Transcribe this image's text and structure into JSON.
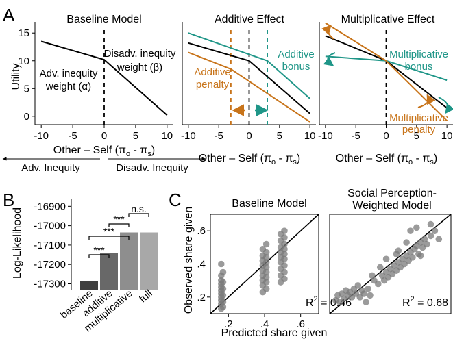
{
  "panel_letters": {
    "A": "A",
    "B": "B",
    "C": "C"
  },
  "colors": {
    "orange": "#c8741a",
    "teal": "#1f9688",
    "black": "#000000",
    "scatter": "#7a7a7a"
  },
  "chart_data": [
    {
      "id": "A1",
      "type": "line",
      "title": "Baseline Model",
      "xlabel": "Other – Self (π",
      "xlabel_sub1": "o",
      "xlabel_mid": " - π",
      "xlabel_sub2": "s",
      "xlabel_end": ")",
      "ylabel": "Utility",
      "xlim": [
        -11,
        11
      ],
      "ylim": [
        -1.5,
        17
      ],
      "xticks": [
        -10,
        -5,
        0,
        5,
        10
      ],
      "yticks": [
        0,
        5,
        10,
        15
      ],
      "series": [
        {
          "x": [
            -10,
            0,
            10
          ],
          "y": [
            13.5,
            10.2,
            0.2
          ],
          "color": "black"
        }
      ],
      "vline": 0,
      "annotations": {
        "adv1": "Adv. inequity",
        "adv2": "weight (α)",
        "dis1": "Disadv. inequity",
        "dis2": "weight (β)"
      },
      "arrow_labels": {
        "left": "Adv. Inequity",
        "right": "Disadv. Inequity"
      }
    },
    {
      "id": "A2",
      "type": "line",
      "title": "Additive Effect",
      "xlabel": "Other – Self (π",
      "xlabel_sub1": "o",
      "xlabel_mid": " - π",
      "xlabel_sub2": "s",
      "xlabel_end": ")",
      "xlim": [
        -11,
        11
      ],
      "ylim": [
        -1.5,
        17
      ],
      "xticks": [
        -10,
        -5,
        0,
        5,
        10
      ],
      "series": [
        {
          "x": [
            -10,
            0,
            10
          ],
          "y": [
            13.2,
            10.0,
            0.5
          ],
          "color": "black"
        },
        {
          "x": [
            -10,
            3,
            10
          ],
          "y": [
            15.0,
            10.0,
            3.2
          ],
          "color": "teal"
        },
        {
          "x": [
            -10,
            -3,
            10
          ],
          "y": [
            11.5,
            8.5,
            -1.0
          ],
          "color": "orange"
        }
      ],
      "vlines": [
        {
          "x": -3,
          "color": "orange"
        },
        {
          "x": 0,
          "color": "black"
        },
        {
          "x": 3,
          "color": "teal"
        }
      ],
      "annotations": {
        "bonus1": "Additive",
        "bonus2": "bonus",
        "pen1": "Additive",
        "pen2": "penalty"
      }
    },
    {
      "id": "A3",
      "type": "line",
      "title": "Multiplicative Effect",
      "xlabel": "Other – Self (π",
      "xlabel_sub1": "o",
      "xlabel_mid": " - π",
      "xlabel_sub2": "s",
      "xlabel_end": ")",
      "xlim": [
        -11,
        11
      ],
      "ylim": [
        -1.5,
        17
      ],
      "xticks": [
        -10,
        -5,
        0,
        5,
        10
      ],
      "series": [
        {
          "x": [
            -10,
            0,
            10
          ],
          "y": [
            14.5,
            10.0,
            1.5
          ],
          "color": "black"
        },
        {
          "x": [
            -10,
            0,
            10
          ],
          "y": [
            10.8,
            10.0,
            6.5
          ],
          "color": "teal"
        },
        {
          "x": [
            -10,
            0,
            10
          ],
          "y": [
            16.8,
            10.0,
            -0.8
          ],
          "color": "orange"
        }
      ],
      "vline": 0,
      "annotations": {
        "bonus1": "Multiplicative",
        "bonus2": "bonus",
        "pen1": "Multiplicative",
        "pen2": "penalty"
      }
    },
    {
      "id": "B",
      "type": "bar",
      "ylabel": "Log-Likelihood",
      "categories": [
        "baseline",
        "additive",
        "multiplicative",
        "full"
      ],
      "values": [
        -17285,
        -17142,
        -17035,
        -17035
      ],
      "bar_colors": [
        "#404040",
        "#686868",
        "#8e8e8e",
        "#a8a8a8"
      ],
      "ylim": [
        -17330,
        -16860
      ],
      "yticks": [
        -16900,
        -17000,
        -17100,
        -17200,
        -17300
      ],
      "significance": [
        "***",
        "***",
        "***",
        "n.s."
      ]
    },
    {
      "id": "C1",
      "type": "scatter",
      "title": "Baseline Model",
      "xlabel": "Predicted share given",
      "ylabel": "Observed share given",
      "xlim": [
        0.1,
        0.7
      ],
      "ylim": [
        0.1,
        0.7
      ],
      "xticks": [
        ".2",
        ".4",
        ".6"
      ],
      "yticks": [
        ".2",
        ".4",
        ".6"
      ],
      "r2_label": "R",
      "r2_sup": "2",
      "r2_value": " = 0.46",
      "points": [
        [
          0.16,
          0.13
        ],
        [
          0.16,
          0.16
        ],
        [
          0.16,
          0.18
        ],
        [
          0.16,
          0.2
        ],
        [
          0.16,
          0.22
        ],
        [
          0.16,
          0.24
        ],
        [
          0.16,
          0.26
        ],
        [
          0.16,
          0.28
        ],
        [
          0.16,
          0.3
        ],
        [
          0.16,
          0.33
        ],
        [
          0.16,
          0.4
        ],
        [
          0.17,
          0.14
        ],
        [
          0.17,
          0.17
        ],
        [
          0.17,
          0.21
        ],
        [
          0.17,
          0.25
        ],
        [
          0.17,
          0.29
        ],
        [
          0.17,
          0.35
        ],
        [
          0.39,
          0.23
        ],
        [
          0.39,
          0.27
        ],
        [
          0.39,
          0.3
        ],
        [
          0.39,
          0.33
        ],
        [
          0.39,
          0.36
        ],
        [
          0.39,
          0.39
        ],
        [
          0.39,
          0.42
        ],
        [
          0.39,
          0.45
        ],
        [
          0.39,
          0.49
        ],
        [
          0.41,
          0.25
        ],
        [
          0.41,
          0.29
        ],
        [
          0.41,
          0.32
        ],
        [
          0.41,
          0.35
        ],
        [
          0.41,
          0.38
        ],
        [
          0.41,
          0.41
        ],
        [
          0.41,
          0.44
        ],
        [
          0.41,
          0.47
        ],
        [
          0.41,
          0.52
        ],
        [
          0.49,
          0.29
        ],
        [
          0.49,
          0.33
        ],
        [
          0.49,
          0.37
        ],
        [
          0.49,
          0.41
        ],
        [
          0.49,
          0.44
        ],
        [
          0.49,
          0.47
        ],
        [
          0.49,
          0.5
        ],
        [
          0.49,
          0.54
        ],
        [
          0.49,
          0.58
        ],
        [
          0.51,
          0.31
        ],
        [
          0.51,
          0.35
        ],
        [
          0.51,
          0.39
        ],
        [
          0.51,
          0.43
        ],
        [
          0.51,
          0.46
        ],
        [
          0.51,
          0.49
        ],
        [
          0.51,
          0.52
        ],
        [
          0.51,
          0.56
        ],
        [
          0.51,
          0.6
        ]
      ]
    },
    {
      "id": "C2",
      "type": "scatter",
      "title1": "Social Perception-",
      "title2": "Weighted Model",
      "xlim": [
        0.1,
        0.7
      ],
      "ylim": [
        0.1,
        0.7
      ],
      "r2_label": "R",
      "r2_sup": "2",
      "r2_value": " = 0.68",
      "points": [
        [
          0.13,
          0.18
        ],
        [
          0.14,
          0.21
        ],
        [
          0.15,
          0.17
        ],
        [
          0.16,
          0.22
        ],
        [
          0.17,
          0.19
        ],
        [
          0.18,
          0.24
        ],
        [
          0.19,
          0.21
        ],
        [
          0.2,
          0.23
        ],
        [
          0.21,
          0.2
        ],
        [
          0.22,
          0.25
        ],
        [
          0.23,
          0.22
        ],
        [
          0.24,
          0.27
        ],
        [
          0.25,
          0.2
        ],
        [
          0.26,
          0.24
        ],
        [
          0.27,
          0.22
        ],
        [
          0.28,
          0.17
        ],
        [
          0.29,
          0.25
        ],
        [
          0.3,
          0.21
        ],
        [
          0.32,
          0.3
        ],
        [
          0.34,
          0.28
        ],
        [
          0.36,
          0.33
        ],
        [
          0.37,
          0.3
        ],
        [
          0.38,
          0.35
        ],
        [
          0.39,
          0.32
        ],
        [
          0.4,
          0.37
        ],
        [
          0.41,
          0.34
        ],
        [
          0.42,
          0.39
        ],
        [
          0.43,
          0.36
        ],
        [
          0.44,
          0.41
        ],
        [
          0.45,
          0.38
        ],
        [
          0.46,
          0.43
        ],
        [
          0.47,
          0.4
        ],
        [
          0.48,
          0.45
        ],
        [
          0.49,
          0.42
        ],
        [
          0.5,
          0.47
        ],
        [
          0.51,
          0.44
        ],
        [
          0.52,
          0.49
        ],
        [
          0.53,
          0.51
        ],
        [
          0.54,
          0.46
        ],
        [
          0.55,
          0.53
        ],
        [
          0.56,
          0.5
        ],
        [
          0.57,
          0.55
        ],
        [
          0.58,
          0.52
        ],
        [
          0.6,
          0.57
        ],
        [
          0.62,
          0.6
        ],
        [
          0.64,
          0.55
        ],
        [
          0.5,
          0.6
        ],
        [
          0.53,
          0.62
        ],
        [
          0.44,
          0.48
        ],
        [
          0.38,
          0.43
        ],
        [
          0.6,
          0.64
        ],
        [
          0.31,
          0.33
        ],
        [
          0.48,
          0.53
        ],
        [
          0.55,
          0.45
        ],
        [
          0.43,
          0.46
        ],
        [
          0.35,
          0.38
        ]
      ]
    }
  ]
}
